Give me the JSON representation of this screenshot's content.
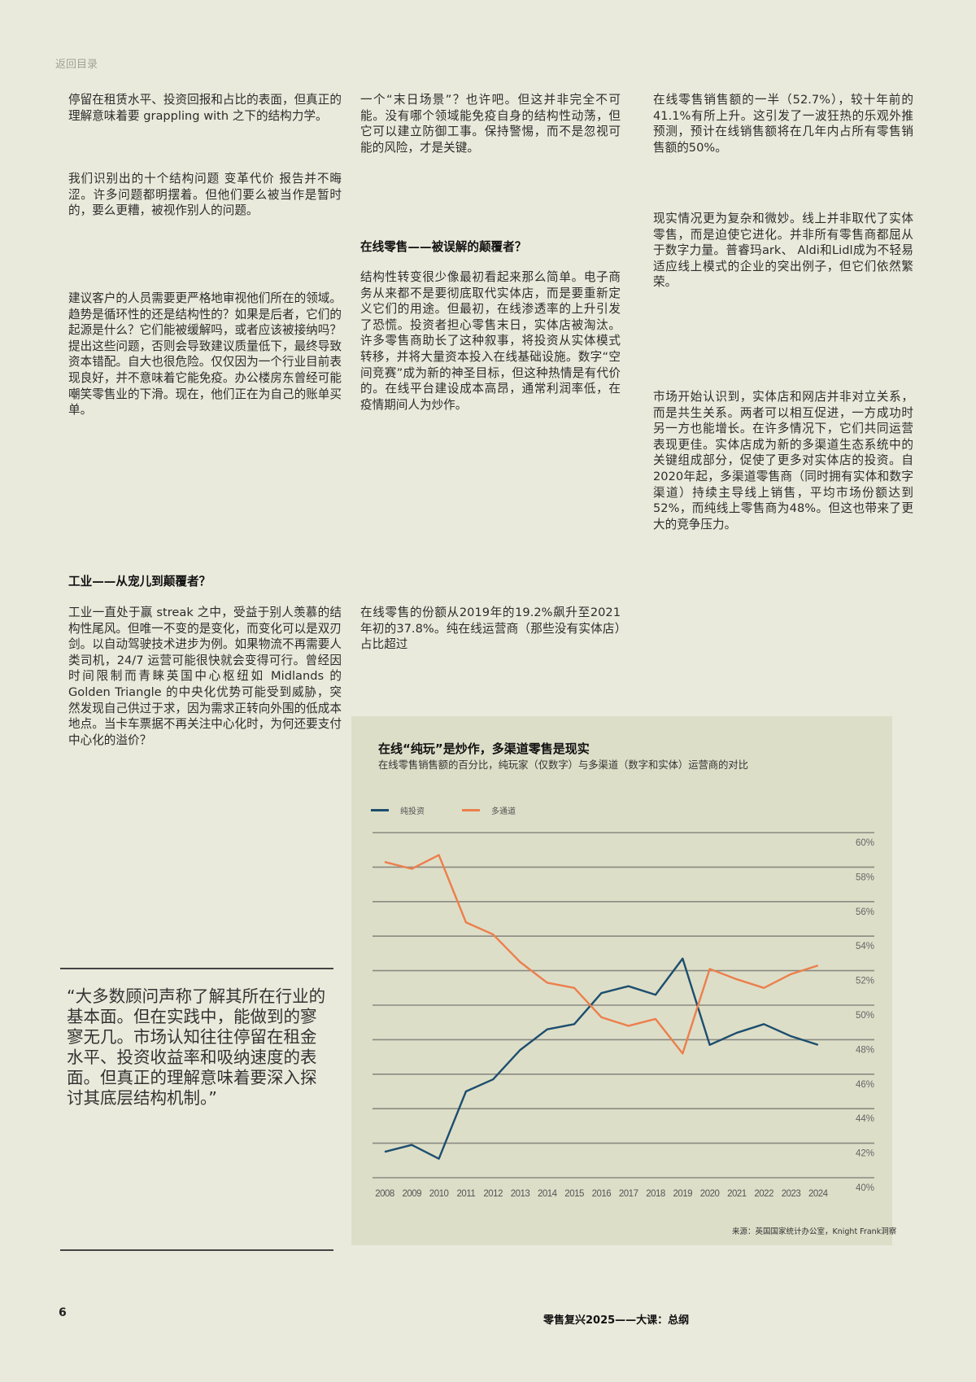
{
  "nav": {
    "back_label": "返回目录"
  },
  "col1": {
    "p1": "停留在租赁水平、投资回报和占比的表面，但真正的理解意味着要 grappling with 之下的结构力学。",
    "p2": "我们识别出的十个结构问题 变革代价 报告并不晦涩。许多问题都明摆着。但他们要么被当作是暂时的，要么更糟，被视作别人的问题。",
    "p3": "建议客户的人员需要更严格地审视他们所在的领域。趋势是循环性的还是结构性的？如果是后者，它们的起源是什么？它们能被缓解吗，或者应该被接纳吗？提出这些问题，否则会导致建议质量低下，最终导致资本错配。自大也很危险。仅仅因为一个行业目前表现良好，并不意味着它能免疫。办公楼房东曾经可能嘲笑零售业的下滑。现在，他们正在为自己的账单买单。",
    "heading": "工业——从宠儿到颠覆者？",
    "p4": "工业一直处于赢 streak 之中，受益于别人羡慕的结构性尾风。但唯一不变的是变化，而变化可以是双刃剑。以自动驾驶技术进步为例。如果物流不再需要人类司机，24/7 运营可能很快就会变得可行。曾经因时间限制而青睐英国中心枢纽如 Midlands 的 Golden Triangle 的中央化优势可能受到威胁，突然发现自己供过于求，因为需求正转向外围的低成本地点。当卡车票据不再关注中心化时，为何还要支付中心化的溢价？",
    "quote": "“大多数顾问声称了解其所在行业的基本面。但在实践中，能做到的寥寥无几。市场认知往往停留在租金水平、投资收益率和吸纳速度的表面。但真正的理解意味着要深入探讨其底层结构机制。”"
  },
  "col2": {
    "p1": "一个“末日场景”？也许吧。但这并非完全不可能。没有哪个领域能免疫自身的结构性动荡，但它可以建立防御工事。保持警惕，而不是忽视可能的风险，才是关键。",
    "heading": "在线零售——被误解的颠覆者？",
    "p2": "结构性转变很少像最初看起来那么简单。电子商务从来都不是要彻底取代实体店，而是要重新定义它们的用途。但最初，在线渗透率的上升引发了恐慌。投资者担心零售末日，实体店被淘汰。许多零售商助长了这种叙事，将投资从实体模式转移，并将大量资本投入在线基础设施。数字“空间竞赛”成为新的神圣目标，但这种热情是有代价的。在线平台建设成本高昂，通常利润率低，在疫情期间人为炒作。",
    "p3": "在线零售的份额从2019年的19.2%飙升至2021年初的37.8%。纯在线运营商（那些没有实体店）占比超过"
  },
  "col3": {
    "p1": "在线零售销售额的一半（52.7%），较十年前的41.1%有所上升。这引发了一波狂热的乐观外推预测，预计在线销售额将在几年内占所有零售销售额的50%。",
    "p2": "现实情况更为复杂和微妙。线上并非取代了实体零售，而是迫使它进化。并非所有零售商都屈从于数字力量。普睿玛ark、 Aldi和Lidl成为不轻易适应线上模式的企业的突出例子，但它们依然繁荣。",
    "p3": "市场开始认识到，实体店和网店并非对立关系，而是共生关系。两者可以相互促进，一方成功时另一方也能增长。在许多情况下，它们共同运营表现更佳。实体店成为新的多渠道生态系统中的关键组成部分，促使了更多对实体店的投资。自2020年起，多渠道零售商（同时拥有实体和数字渠道）持续主导线上销售，平均市场份额达到52%，而纯线上零售商为48%。但这也带来了更大的竞争压力。"
  },
  "chart_data": {
    "type": "line",
    "title": "在线“纯玩”是炒作，多渠道零售是现实",
    "subtitle": "在线零售销售额的百分比，纯玩家（仅数字）与多渠道（数字和实体）运营商的对比",
    "categories": [
      "2008",
      "2009",
      "2010",
      "2011",
      "2012",
      "2013",
      "2014",
      "2015",
      "2016",
      "2017",
      "2018",
      "2019",
      "2020",
      "2021",
      "2022",
      "2023",
      "2024"
    ],
    "series": [
      {
        "name": "纯投资",
        "color": "#1d4e6e",
        "values": [
          41.5,
          41.9,
          41.1,
          45.0,
          45.7,
          47.4,
          48.6,
          48.9,
          50.7,
          51.1,
          50.6,
          52.7,
          47.7,
          48.4,
          48.9,
          48.2,
          47.7
        ]
      },
      {
        "name": "多通道",
        "color": "#ec7f4c",
        "values": [
          58.3,
          57.9,
          58.7,
          54.8,
          54.1,
          52.5,
          51.3,
          51.0,
          49.3,
          48.8,
          49.2,
          47.2,
          52.1,
          51.5,
          51.0,
          51.8,
          52.3
        ]
      }
    ],
    "y_ticks": [
      "60%",
      "58%",
      "56%",
      "54%",
      "52%",
      "50%",
      "48%",
      "46%",
      "44%",
      "42%",
      "40%"
    ],
    "ylim": [
      40,
      60
    ],
    "grid": true,
    "legend": "top-left",
    "axis_side": "right",
    "source": "来源：英国国家统计办公室，Knight Frank洞察"
  },
  "footer": {
    "page_number": "6",
    "title": "零售复兴2025——大课：总纲"
  }
}
